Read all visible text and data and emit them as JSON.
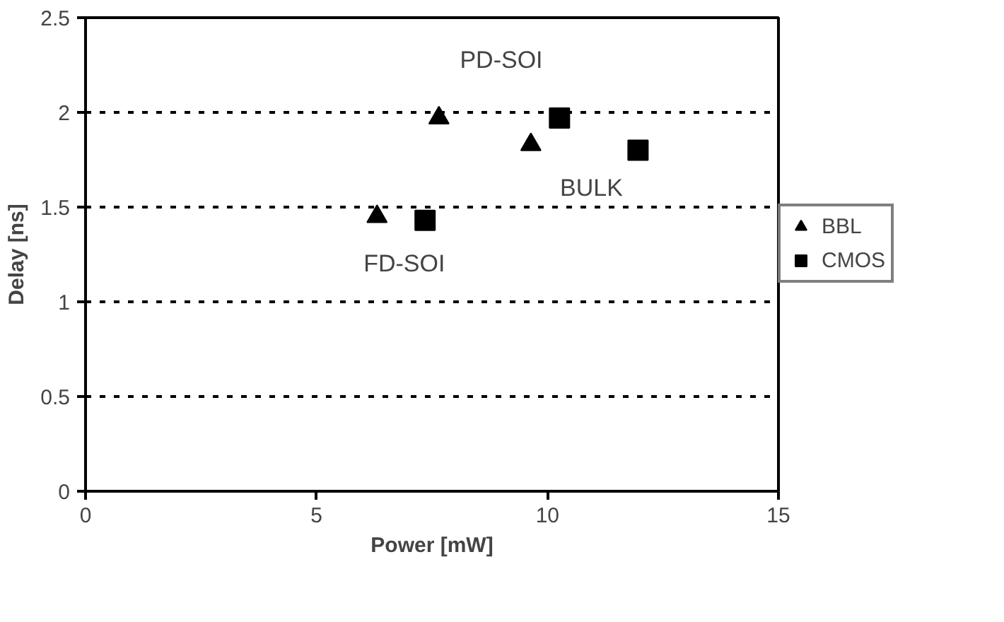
{
  "chart_data": {
    "type": "scatter",
    "xlabel": "Power [mW]",
    "ylabel": "Delay [ns]",
    "xlim": [
      0,
      15
    ],
    "xticks": [
      0,
      5,
      10,
      15
    ],
    "ylim": [
      0,
      2.5
    ],
    "yticks": [
      0,
      0.5,
      1,
      1.5,
      2,
      2.5
    ],
    "grid": "y",
    "legend": "right",
    "series": [
      {
        "name": "BBL",
        "color": "#000000",
        "marker": "triangle",
        "x": [
          6.31,
          7.65,
          9.64
        ],
        "values": [
          1.45,
          1.97,
          1.83
        ]
      },
      {
        "name": "CMOS",
        "color": "#000000",
        "marker": "square",
        "x": [
          7.35,
          10.26,
          11.96
        ],
        "values": [
          1.43,
          1.97,
          1.8
        ]
      }
    ],
    "annotations": [
      "PD-SOI",
      "BULK",
      "FD-SOI"
    ]
  }
}
